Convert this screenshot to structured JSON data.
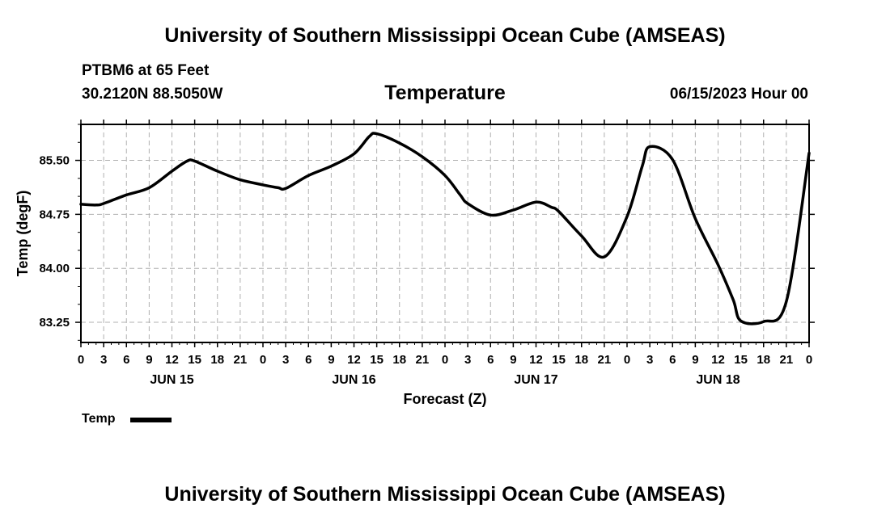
{
  "header": {
    "title": "University of Southern Mississippi Ocean Cube (AMSEAS)",
    "station": "PTBM6 at 65 Feet",
    "coords": "30.2120N  88.5050W",
    "variable": "Temperature",
    "datetime": "06/15/2023 Hour 00"
  },
  "footer": {
    "title": "University of Southern Mississippi Ocean Cube (AMSEAS)"
  },
  "legend": {
    "label": "Temp",
    "color": "#000000"
  },
  "chart_data": {
    "type": "line",
    "title": "Temperature",
    "xlabel": "Forecast (Z)",
    "ylabel": "Temp (degF)",
    "xlim": [
      0,
      96
    ],
    "ylim": [
      82.97,
      86.0
    ],
    "yticks": [
      83.25,
      84.0,
      84.75,
      85.5
    ],
    "ytick_labels": [
      "83.25",
      "84.00",
      "84.75",
      "85.50"
    ],
    "xtick_labels": [
      "0",
      "3",
      "6",
      "9",
      "12",
      "15",
      "18",
      "21",
      "0",
      "3",
      "6",
      "9",
      "12",
      "15",
      "18",
      "21",
      "0",
      "3",
      "6",
      "9",
      "12",
      "15",
      "18",
      "21",
      "0",
      "3",
      "6",
      "9",
      "12",
      "15",
      "18",
      "21",
      "0"
    ],
    "day_labels": [
      {
        "hour": 12,
        "label": "JUN 15"
      },
      {
        "hour": 36,
        "label": "JUN 16"
      },
      {
        "hour": 60,
        "label": "JUN 17"
      },
      {
        "hour": 84,
        "label": "JUN 18"
      }
    ],
    "grid": true,
    "series": [
      {
        "name": "Temp",
        "x": [
          0,
          2,
          3,
          6,
          9,
          12,
          14,
          15,
          18,
          21,
          24,
          26,
          27,
          30,
          33,
          36,
          38,
          39,
          42,
          45,
          48,
          50,
          51,
          54,
          57,
          60,
          62,
          63,
          66,
          69,
          72,
          74,
          75,
          78,
          81,
          84,
          86,
          87,
          90,
          93,
          96
        ],
        "y": [
          84.89,
          84.88,
          84.9,
          85.02,
          85.12,
          85.35,
          85.49,
          85.49,
          85.35,
          85.23,
          85.16,
          85.12,
          85.11,
          85.29,
          85.42,
          85.59,
          85.83,
          85.87,
          85.74,
          85.55,
          85.29,
          85.02,
          84.9,
          84.74,
          84.81,
          84.92,
          84.85,
          84.79,
          84.45,
          84.16,
          84.72,
          85.42,
          85.69,
          85.51,
          84.69,
          84.05,
          83.56,
          83.27,
          83.26,
          83.54,
          85.6
        ]
      }
    ]
  }
}
